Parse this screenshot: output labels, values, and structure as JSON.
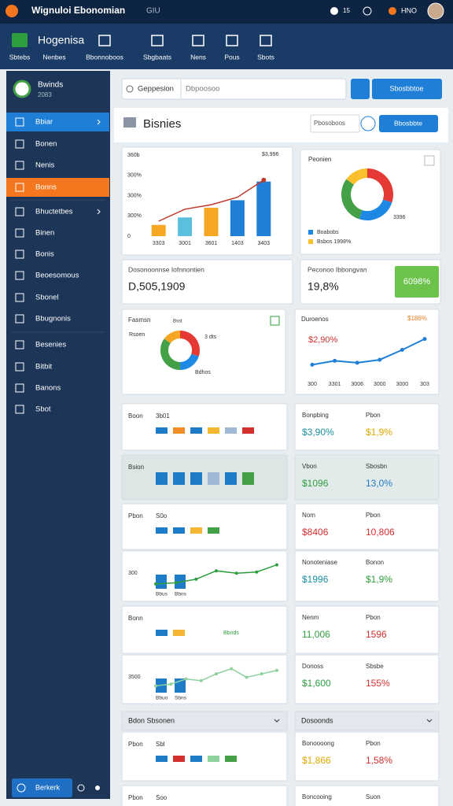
{
  "topbar": {
    "title": "Wignuloi Ebonomian",
    "subtitle": "GIU",
    "badge": "15",
    "user": "HNO"
  },
  "nav": {
    "brand": "Hogenisa",
    "tabs": [
      "Sbtebs",
      "Nenbes",
      "Bbonnoboos",
      "Sbgbaats",
      "Nens",
      "Pous",
      "Sbots"
    ]
  },
  "sidebar": {
    "profile": {
      "name": "Bwinds",
      "sub": "2083"
    },
    "items": [
      "Bbiar",
      "Bonen",
      "Nenis",
      "Bonns",
      "Bhuctetbes",
      "Binen",
      "Bonis",
      "Beoesomous",
      "Sbonel",
      "Bbugnonis",
      "Besenies",
      "Bitbit",
      "Banons",
      "Sbot"
    ],
    "footer": "Berkerk"
  },
  "search": {
    "label": "Geppesion",
    "placeholder": "Dbpoosoo",
    "button": "Sbosbbtoe"
  },
  "header": {
    "title": "Bisnies",
    "input": "Pbosoboos",
    "button": "Bbosbbte"
  },
  "combo_chart": {
    "y_labels": [
      "360b",
      "300%",
      "300%",
      "300%",
      "0"
    ],
    "x_labels": [
      "3303",
      "3001",
      "3601",
      "1403",
      "3403"
    ],
    "bars": [
      15,
      25,
      38,
      48,
      73
    ],
    "bar_colors": [
      "#f5a623",
      "#5bc0de",
      "#f5a623",
      "#1f7fd6",
      "#1f7fd6"
    ],
    "line": [
      20,
      36,
      42,
      52,
      75
    ],
    "line_color": "#c0392b",
    "annotation": "$3,996",
    "ylim": [
      0,
      100
    ]
  },
  "donut_card": {
    "title": "Peonien",
    "segments": [
      {
        "value": 30,
        "color": "#e53935"
      },
      {
        "value": 25,
        "color": "#1e88e5"
      },
      {
        "value": 30,
        "color": "#43a047"
      },
      {
        "value": 15,
        "color": "#fbc02d"
      }
    ],
    "side_label": "3396",
    "legend": [
      {
        "label": "Boabobs",
        "color": "#1e88e5"
      },
      {
        "label": "Bsbos 1998%",
        "color": "#fbc02d"
      }
    ]
  },
  "stats": [
    {
      "label": "Dosonoonnse Iofnnontien",
      "value": "D,505,1909"
    },
    {
      "label": "Peconoo Ibbongvan",
      "value": "19,8%",
      "button": "6098%"
    }
  ],
  "donut2": {
    "title": "Fasmsn",
    "tag": "Bsst",
    "labels": [
      "Rsoen",
      "3 dts",
      "Bdhos"
    ],
    "segments": [
      {
        "value": 30,
        "color": "#e53935"
      },
      {
        "value": 20,
        "color": "#1e88e5"
      },
      {
        "value": 35,
        "color": "#43a047"
      },
      {
        "value": 15,
        "color": "#f5a623"
      }
    ]
  },
  "line_chart": {
    "title": "Duroenos",
    "annotation": "$186%",
    "callout": "$2,90%",
    "x_labels": [
      "300",
      "3301",
      "3006",
      "3000",
      "3000",
      "303"
    ],
    "values": [
      20,
      28,
      24,
      30,
      50,
      72
    ],
    "color": "#1f7fd6",
    "ylim": [
      0,
      100
    ]
  },
  "rows": [
    {
      "left": {
        "title": "Boon",
        "label": "3b01",
        "bars": [
          "#1e7bc8",
          "#f28c28",
          "#1e7bc8",
          "#f5b731",
          "#9fb8d6",
          "#d32f2f"
        ]
      },
      "right": [
        {
          "label": "Bonpbing",
          "value": "$3,90%",
          "color": "#1a8fa0"
        },
        {
          "label": "Pbon",
          "value": "$1,9%",
          "color": "#e0a800"
        }
      ]
    },
    {
      "tint": true,
      "left": {
        "title": "Bsion",
        "bars": [
          "#1e7bc8",
          "#1e7bc8",
          "#1e7bc8",
          "#9fb8d6",
          "#1e7bc8",
          "#43a047"
        ]
      },
      "right": [
        {
          "label": "Vbon",
          "value": "$1096",
          "color": "#2e9e3e"
        },
        {
          "label": "Sbosbn",
          "value": "13,0%",
          "color": "#1e7bc8"
        }
      ]
    },
    {
      "left": {
        "title": "Pbon",
        "label": "S0o",
        "bars": [
          "#1e7bc8",
          "#1e7bc8",
          "#f5b731",
          "#43a047"
        ]
      },
      "right": [
        {
          "label": "Nom",
          "value": "$8406",
          "color": "#d32f2f"
        },
        {
          "label": "Pbon",
          "value": "10,806",
          "color": "#d32f2f"
        }
      ]
    },
    {
      "left": {
        "label": "300",
        "line": [
          8,
          10,
          16,
          30,
          26,
          28,
          40
        ],
        "line_color": "#2e9e3e",
        "ylim": [
          0,
          50
        ],
        "bar_labels": [
          "Bbus",
          "Bbns"
        ]
      },
      "right": [
        {
          "label": "Nonoteniase",
          "value": "$1996",
          "color": "#1a8fa0"
        },
        {
          "label": "Bonon",
          "value": "$1,9%",
          "color": "#2e9e3e"
        }
      ]
    },
    {
      "left": {
        "title": "Bonn",
        "bars": [
          "#1e7bc8",
          "#f5b731"
        ],
        "label2": "Bbnds"
      },
      "right": [
        {
          "label": "Nenm",
          "value": "11,006",
          "color": "#2e9e3e"
        },
        {
          "label": "Pbon",
          "value": "1596",
          "color": "#d32f2f"
        }
      ]
    },
    {
      "left": {
        "label": "3500",
        "line": [
          8,
          10,
          16,
          14,
          22,
          28,
          18,
          22,
          26
        ],
        "line_color": "#8fd19e",
        "ylim": [
          0,
          35
        ],
        "bar_labels": [
          "Bbuo",
          "Sbns"
        ]
      },
      "right": [
        {
          "label": "Donoss",
          "value": "$1,600",
          "color": "#2e9e3e"
        },
        {
          "label": "Sbsbe",
          "value": "155%",
          "color": "#d32f2f"
        }
      ]
    }
  ],
  "sections": [
    "Bdon Sbsonen",
    "Dosoonds"
  ],
  "lower_rows": [
    {
      "left": {
        "title": "Pbon",
        "label": "Sbl",
        "bars": [
          "#1e7bc8",
          "#d32f2f",
          "#1e7bc8",
          "#8fd19e",
          "#43a047"
        ]
      },
      "right": [
        {
          "label": "Bonoooong",
          "value": "$1,866",
          "color": "#e0a800"
        },
        {
          "label": "Pbon",
          "value": "1,58%",
          "color": "#d32f2f"
        }
      ]
    },
    {
      "left": {
        "title": "Pbon",
        "label": "Soo"
      },
      "right": [
        {
          "label": "Boncooing"
        },
        {
          "label": "Suon"
        }
      ]
    }
  ]
}
